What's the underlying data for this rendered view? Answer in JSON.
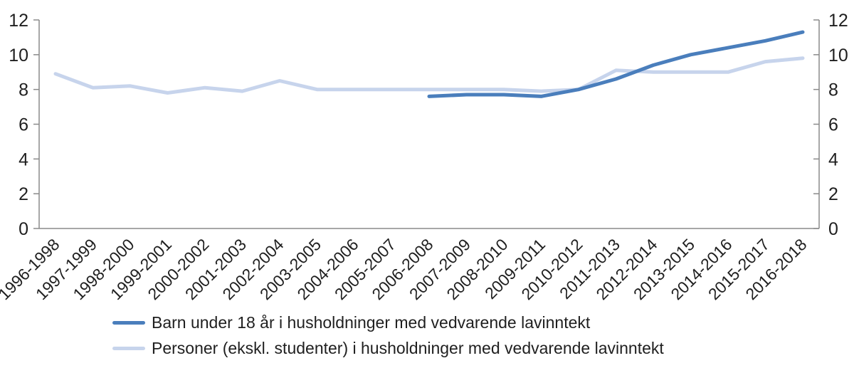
{
  "chart_data": {
    "type": "line",
    "title": "",
    "xlabel": "",
    "ylabel": "",
    "ylim": [
      0,
      12
    ],
    "yticks": [
      0,
      2,
      4,
      6,
      8,
      10,
      12
    ],
    "grid": false,
    "legend_position": "bottom-left",
    "axis_color": "#8a8a8a",
    "text_color": "#1f1f1f",
    "categories": [
      "1996-1998",
      "1997-1999",
      "1998-2000",
      "1999-2001",
      "2000-2002",
      "2001-2003",
      "2002-2004",
      "2003-2005",
      "2004-2006",
      "2005-2007",
      "2006-2008",
      "2007-2009",
      "2008-2010",
      "2009-2011",
      "2010-2012",
      "2011-2013",
      "2012-2014",
      "2013-2015",
      "2014-2016",
      "2015-2017",
      "2016-2018"
    ],
    "series": [
      {
        "name": "Barn under 18 år i husholdninger med vedvarende lavinntekt",
        "color": "#4a7ebc",
        "values": [
          null,
          null,
          null,
          null,
          null,
          null,
          null,
          null,
          null,
          null,
          7.6,
          7.7,
          7.7,
          7.6,
          8.0,
          8.6,
          9.4,
          10.0,
          10.4,
          10.8,
          11.3
        ]
      },
      {
        "name": "Personer (ekskl. studenter) i husholdninger med vedvarende lavinntekt",
        "color": "#c7d4ec",
        "values": [
          8.9,
          8.1,
          8.2,
          7.8,
          8.1,
          7.9,
          8.5,
          8.0,
          8.0,
          8.0,
          8.0,
          8.0,
          8.0,
          7.9,
          8.0,
          9.1,
          9.0,
          9.0,
          9.0,
          9.6,
          9.8
        ]
      }
    ]
  }
}
